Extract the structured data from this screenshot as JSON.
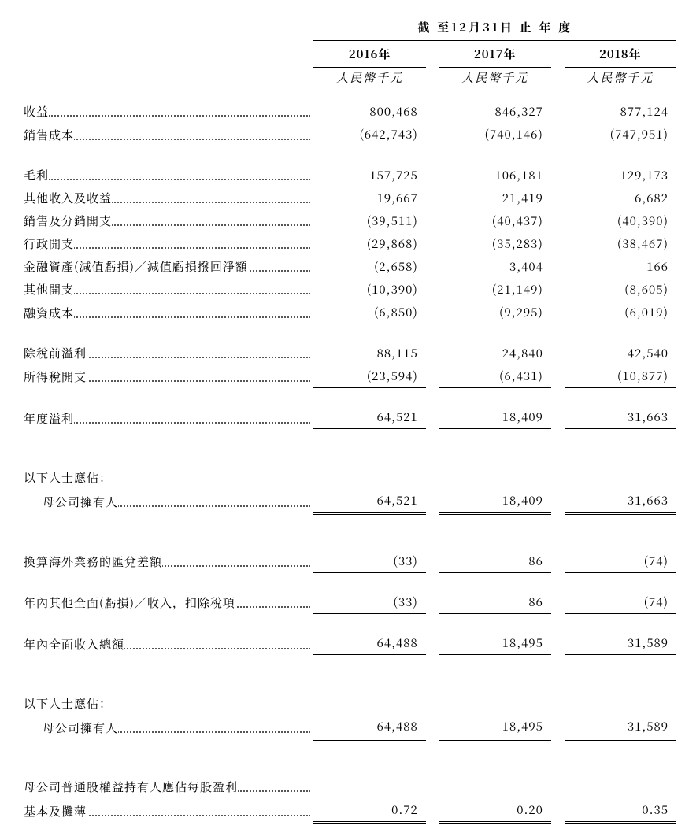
{
  "header": {
    "period_title": "截 至12月31日 止 年 度",
    "years": [
      "2016年",
      "2017年",
      "2018年"
    ],
    "unit": "人民幣千元"
  },
  "rows": {
    "revenue": {
      "label": "收益",
      "v": [
        "800,468",
        "846,327",
        "877,124"
      ]
    },
    "cogs": {
      "label": "銷售成本",
      "v": [
        "(642,743)",
        "(740,146)",
        "(747,951)"
      ]
    },
    "gross_profit": {
      "label": "毛利",
      "v": [
        "157,725",
        "106,181",
        "129,173"
      ]
    },
    "other_income": {
      "label": "其他收入及收益",
      "v": [
        "19,667",
        "21,419",
        "6,682"
      ]
    },
    "selling_exp": {
      "label": "銷售及分銷開支",
      "v": [
        "(39,511)",
        "(40,437)",
        "(40,390)"
      ]
    },
    "admin_exp": {
      "label": "行政開支",
      "v": [
        "(29,868)",
        "(35,283)",
        "(38,467)"
      ]
    },
    "impairment": {
      "label": "金融資產(減值虧損)╱減值虧損撥回淨額",
      "v": [
        "(2,658)",
        "3,404",
        "166"
      ]
    },
    "other_exp": {
      "label": "其他開支",
      "v": [
        "(10,390)",
        "(21,149)",
        "(8,605)"
      ]
    },
    "finance_cost": {
      "label": "融資成本",
      "v": [
        "(6,850)",
        "(9,295)",
        "(6,019)"
      ]
    },
    "pbt": {
      "label": "除稅前溢利",
      "v": [
        "88,115",
        "24,840",
        "42,540"
      ]
    },
    "tax": {
      "label": "所得稅開支",
      "v": [
        "(23,594)",
        "(6,431)",
        "(10,877)"
      ]
    },
    "profit_year": {
      "label": "年度溢利",
      "v": [
        "64,521",
        "18,409",
        "31,663"
      ]
    },
    "attrib_heading1": {
      "label": "以下人士應佔："
    },
    "attrib_parent1": {
      "label": "母公司擁有人",
      "v": [
        "64,521",
        "18,409",
        "31,663"
      ]
    },
    "fx_diff": {
      "label": "換算海外業務的匯兌差額",
      "v": [
        "(33)",
        "86",
        "(74)"
      ]
    },
    "oci": {
      "label": "年內其他全面(虧損)╱收入，扣除稅項",
      "v": [
        "(33)",
        "86",
        "(74)"
      ]
    },
    "total_ci": {
      "label": "年內全面收入總額",
      "v": [
        "64,488",
        "18,495",
        "31,589"
      ]
    },
    "attrib_heading2": {
      "label": "以下人士應佔："
    },
    "attrib_parent2": {
      "label": "母公司擁有人",
      "v": [
        "64,488",
        "18,495",
        "31,589"
      ]
    },
    "eps_heading": {
      "label": "母公司普通股權益持有人應佔每股盈利"
    },
    "eps_basic": {
      "label": "基本及攤薄",
      "v": [
        "0.72",
        "0.20",
        "0.35"
      ]
    }
  }
}
